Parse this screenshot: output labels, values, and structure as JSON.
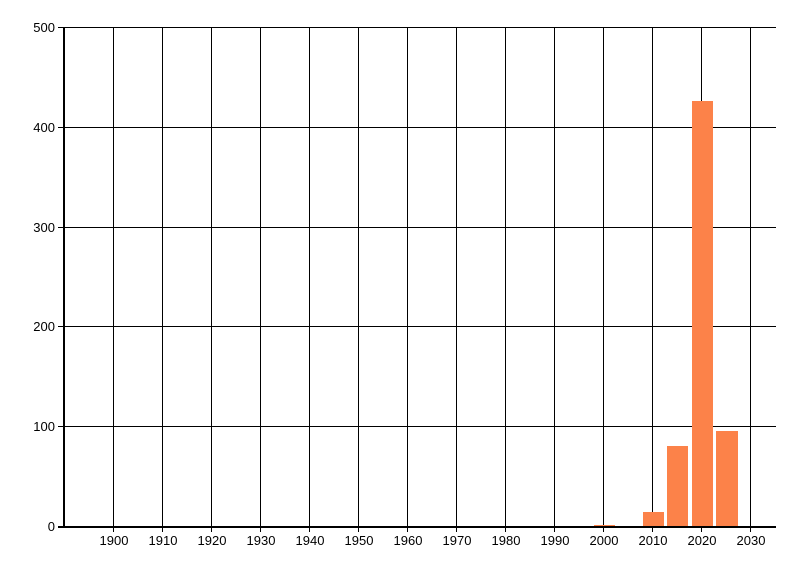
{
  "chart_data": {
    "type": "bar",
    "title": "",
    "xlabel": "",
    "ylabel": "",
    "x": [
      2000,
      2010,
      2015,
      2020,
      2025
    ],
    "values": [
      2,
      15,
      81,
      427,
      96
    ],
    "xlim": [
      1890,
      2035
    ],
    "ylim": [
      0,
      500
    ],
    "x_ticks": [
      1900,
      1910,
      1920,
      1930,
      1940,
      1950,
      1960,
      1970,
      1980,
      1990,
      2000,
      2010,
      2020,
      2030
    ],
    "y_ticks": [
      0,
      100,
      200,
      300,
      400,
      500
    ],
    "bar_color": "#fc8249",
    "gridline_color": "#000000",
    "axis_color": "#000000",
    "text_color": "#000000",
    "background_color": "#ffffff",
    "grid": "both",
    "legend": "none",
    "bar_width_years": 4.3
  }
}
